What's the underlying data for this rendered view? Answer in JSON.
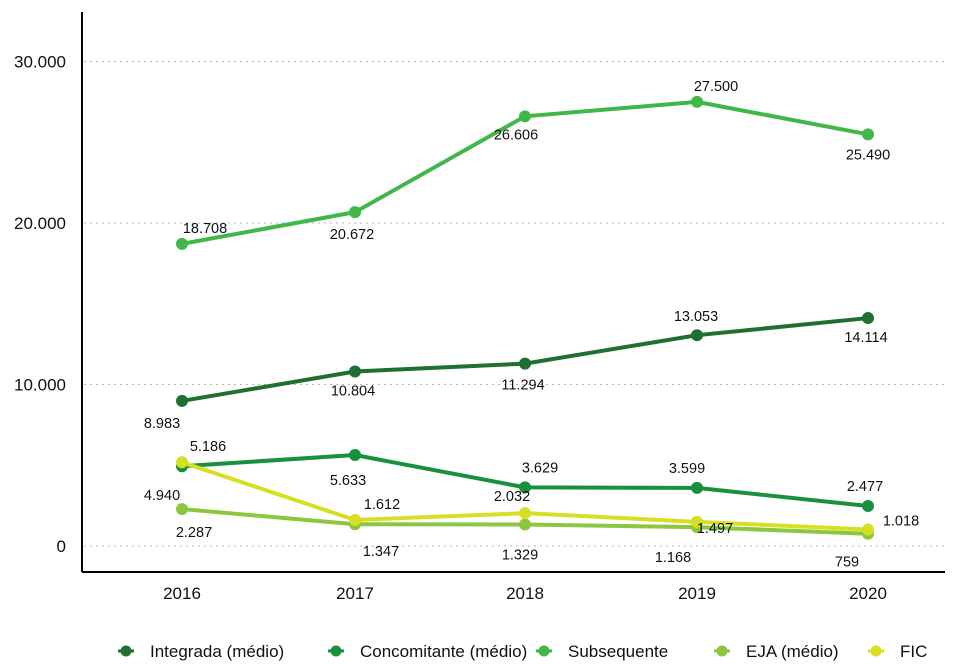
{
  "chart_data": {
    "type": "line",
    "title": "",
    "xlabel": "",
    "ylabel": "",
    "categories": [
      "2016",
      "2017",
      "2018",
      "2019",
      "2020"
    ],
    "ylim": [
      0,
      30000
    ],
    "yticks": [
      0,
      10000,
      20000,
      30000
    ],
    "ytick_labels": [
      "0",
      "10.000",
      "20.000",
      "30.000"
    ],
    "grid": "horizontal dotted",
    "legend_position": "bottom",
    "series": [
      {
        "name": "Integrada (médio)",
        "color": "#1f6e32",
        "values": [
          8983,
          10804,
          11294,
          13053,
          14114
        ],
        "labels": [
          "8.983",
          "10.804",
          "11.294",
          "13.053",
          "14.114"
        ]
      },
      {
        "name": "Concomitante (médio)",
        "color": "#19913c",
        "values": [
          4940,
          5633,
          3629,
          3599,
          2477
        ],
        "labels": [
          "4.940",
          "5.633",
          "3.629",
          "3.599",
          "2.477"
        ]
      },
      {
        "name": "Subsequente",
        "color": "#41b649",
        "values": [
          18708,
          20672,
          26606,
          27500,
          25490
        ],
        "labels": [
          "18.708",
          "20.672",
          "26.606",
          "27.500",
          "25.490"
        ]
      },
      {
        "name": "EJA (médio)",
        "color": "#8cc63f",
        "values": [
          2287,
          1347,
          1329,
          1168,
          759
        ],
        "labels": [
          "2.287",
          "1.347",
          "1.329",
          "1.168",
          "759"
        ]
      },
      {
        "name": "FIC",
        "color": "#d7df23",
        "values": [
          5186,
          1612,
          2032,
          1497,
          1018
        ],
        "labels": [
          "5.186",
          "1.612",
          "2.032",
          "1.497",
          "1.018"
        ]
      }
    ]
  }
}
